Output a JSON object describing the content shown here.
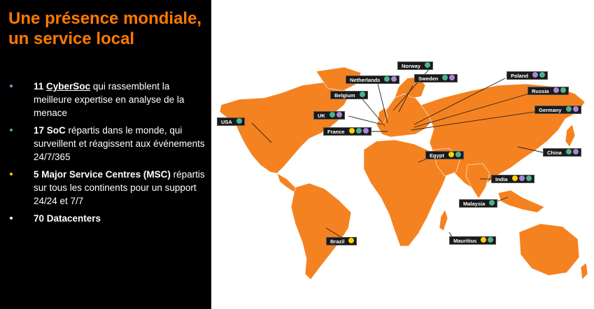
{
  "slide": {
    "title_line1": "Une présence mondiale,",
    "title_line2": "un service local"
  },
  "bullets": [
    {
      "bold": "11",
      "bold_underlined": "CyberSoc",
      "text": " qui rassemblent la meilleure expertise en analyse de la menace",
      "dot_color": "#7a9cd6"
    },
    {
      "bold": "17 SoC",
      "text": " répartis dans le monde, qui surveillent et réagissent aux événements 24/7/365",
      "dot_color": "#4bb18e"
    },
    {
      "bold": "5 Major Service Centres (MSC)",
      "text": " répartis sur tous les continents pour un support 24/24 et 7/7",
      "dot_color": "#ffcc00"
    },
    {
      "bold": "70 Datacenters",
      "text": "",
      "dot_color": "#ffffff"
    }
  ],
  "colors": {
    "accent": "#ff7900",
    "map": "#f58220",
    "cybersoc": "#a886d8",
    "soc": "#4bb18e",
    "msc": "#ffd200"
  },
  "locations": [
    {
      "name": "Norway",
      "dots": [
        "#4bb18e"
      ]
    },
    {
      "name": "Netherlands",
      "dots": [
        "#4bb18e",
        "#a886d8"
      ]
    },
    {
      "name": "Sweden",
      "dots": [
        "#4bb18e",
        "#a886d8"
      ]
    },
    {
      "name": "Poland",
      "dots": [
        "#a886d8",
        "#4bb18e"
      ]
    },
    {
      "name": "Belgium",
      "dots": [
        "#4bb18e"
      ]
    },
    {
      "name": "Russia",
      "dots": [
        "#a886d8",
        "#4bb18e"
      ]
    },
    {
      "name": "UK",
      "dots": [
        "#4bb18e",
        "#a886d8"
      ]
    },
    {
      "name": "Germany",
      "dots": [
        "#4bb18e",
        "#a886d8"
      ]
    },
    {
      "name": "USA",
      "dots": [
        "#4bb18e"
      ]
    },
    {
      "name": "France",
      "dots": [
        "#ffd200",
        "#4bb18e",
        "#a886d8"
      ]
    },
    {
      "name": "Egypt",
      "dots": [
        "#ffd200",
        "#4bb18e"
      ]
    },
    {
      "name": "China",
      "dots": [
        "#4bb18e",
        "#a886d8"
      ]
    },
    {
      "name": "India",
      "dots": [
        "#ffd200",
        "#a886d8",
        "#4bb18e"
      ]
    },
    {
      "name": "Malaysia",
      "dots": [
        "#4bb18e"
      ]
    },
    {
      "name": "Brazil",
      "dots": [
        "#ffd200"
      ]
    },
    {
      "name": "Mauritius",
      "dots": [
        "#ffd200",
        "#4bb18e"
      ]
    }
  ]
}
